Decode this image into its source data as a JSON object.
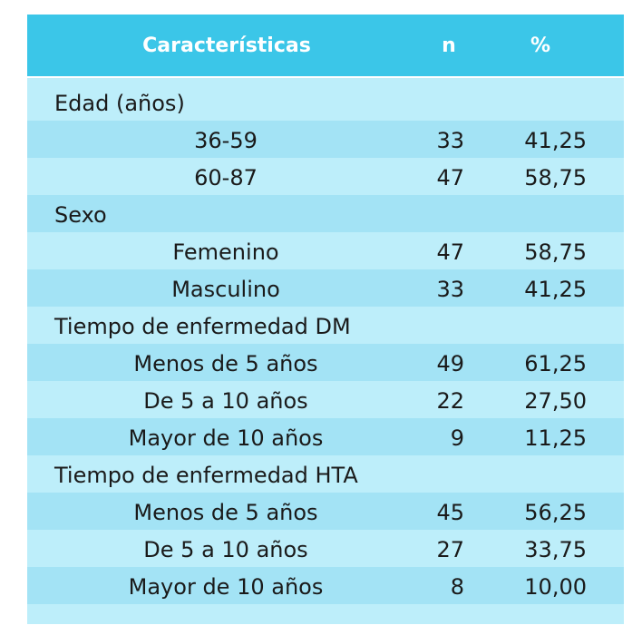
{
  "header": {
    "caracteristicas": "Características",
    "n": "n",
    "pct": "%"
  },
  "rows": [
    {
      "label": "Edad (años)",
      "type": "category"
    },
    {
      "label": "36-59",
      "n": "33",
      "pct": "41,25",
      "type": "sub"
    },
    {
      "label": "60-87",
      "n": "47",
      "pct": "58,75",
      "type": "sub"
    },
    {
      "label": "Sexo",
      "type": "category"
    },
    {
      "label": "Femenino",
      "n": "47",
      "pct": "58,75",
      "type": "sub"
    },
    {
      "label": "Masculino",
      "n": "33",
      "pct": "41,25",
      "type": "sub"
    },
    {
      "label": "Tiempo de enfermedad DM",
      "type": "category"
    },
    {
      "label": "Menos de 5 años",
      "n": "49",
      "pct": "61,25",
      "type": "sub"
    },
    {
      "label": "De 5 a 10 años",
      "n": "22",
      "pct": "27,50",
      "type": "sub"
    },
    {
      "label": "Mayor de 10 años",
      "n": "9",
      "pct": "11,25",
      "type": "sub"
    },
    {
      "label": "Tiempo de enfermedad HTA",
      "type": "category"
    },
    {
      "label": "Menos de 5 años",
      "n": "45",
      "pct": "56,25",
      "type": "sub"
    },
    {
      "label": "De 5 a 10 años",
      "n": "27",
      "pct": "33,75",
      "type": "sub"
    },
    {
      "label": "Mayor de 10 años",
      "n": "8",
      "pct": "10,00",
      "type": "sub"
    }
  ],
  "colors": {
    "header_bg": "#3bc6e8",
    "row_light": "#bdeefa",
    "row_dark": "#a3e3f5"
  }
}
